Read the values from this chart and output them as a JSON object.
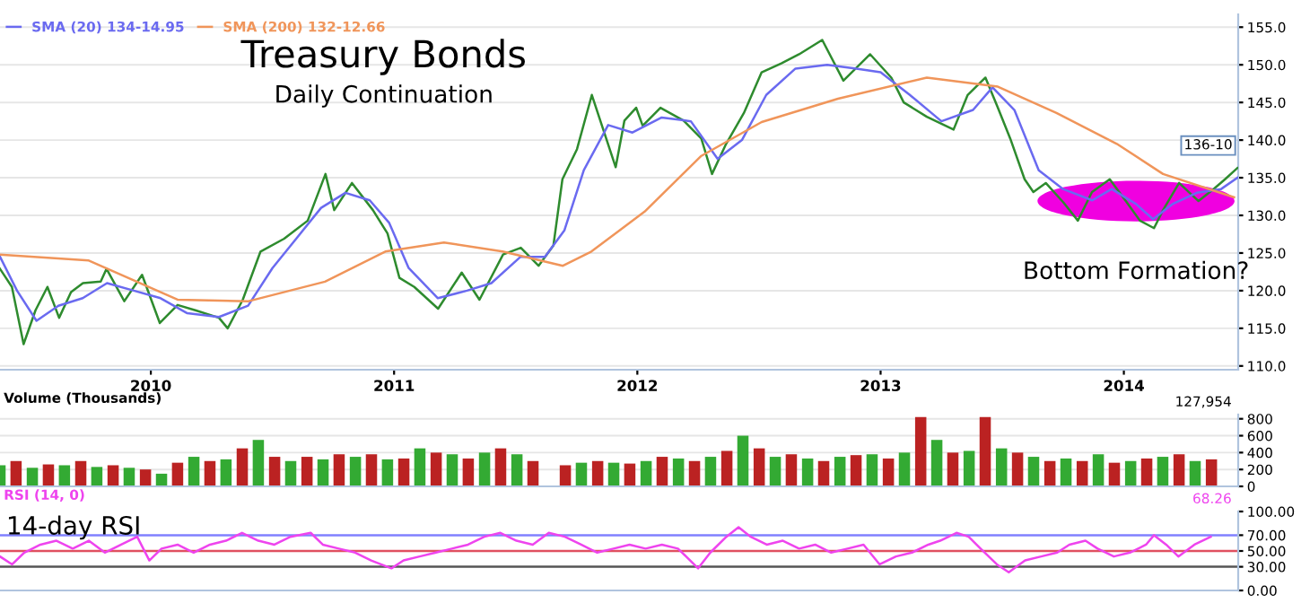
{
  "chart_data": [
    {
      "type": "line",
      "title": "Treasury Bonds",
      "subtitle": "Daily Continuation",
      "legend": "top left",
      "grid": "y",
      "xlim": [
        2009.38,
        2014.47
      ],
      "xticks": [
        2010,
        2011,
        2012,
        2013,
        2014
      ],
      "ylim": [
        109.5,
        156.7
      ],
      "yticks": [
        {
          "value": 110,
          "label": "110.0"
        },
        {
          "value": 115,
          "label": "115.0"
        },
        {
          "value": 120,
          "label": "120.0"
        },
        {
          "value": 125,
          "label": "125.0"
        },
        {
          "value": 130,
          "label": "130.0"
        },
        {
          "value": 135,
          "label": "135.0"
        },
        {
          "value": 140,
          "label": "140.0"
        },
        {
          "value": 145,
          "label": "145.0"
        },
        {
          "value": 150,
          "label": "150.0"
        },
        {
          "value": 155,
          "label": "155.0"
        }
      ],
      "annotations": [
        {
          "text": "Bottom Formation?",
          "x": 2014.05,
          "y": 131.9
        },
        {
          "text": "136-10",
          "x": 2014.467,
          "y": 136.3
        }
      ],
      "series": [
        {
          "color": "#2e8b2e",
          "x": [
            2009.38,
            2009.429,
            2009.477,
            2009.526,
            2009.575,
            2009.623,
            2009.672,
            2009.721,
            2009.794,
            2009.818,
            2009.891,
            2009.964,
            2010.037,
            2010.11,
            2010.183,
            2010.28,
            2010.316,
            2010.378,
            2010.451,
            2010.548,
            2010.645,
            2010.718,
            2010.754,
            2010.827,
            2010.913,
            2010.973,
            2011.022,
            2011.083,
            2011.181,
            2011.278,
            2011.351,
            2011.448,
            2011.521,
            2011.594,
            2011.655,
            2011.692,
            2011.752,
            2011.813,
            2011.862,
            2011.911,
            2011.947,
            2011.995,
            2012.022,
            2012.095,
            2012.19,
            2012.263,
            2012.307,
            2012.365,
            2012.438,
            2012.511,
            2012.592,
            2012.665,
            2012.76,
            2012.847,
            2012.957,
            2013.044,
            2013.095,
            2013.19,
            2013.3,
            2013.358,
            2013.431,
            2013.482,
            2013.533,
            2013.592,
            2013.628,
            2013.679,
            2013.752,
            2013.811,
            2013.869,
            2013.942,
            2014.008,
            2014.066,
            2014.124,
            2014.161,
            2014.227,
            2014.307,
            2014.373,
            2014.416,
            2014.467
          ],
          "values": [
            122.9,
            120.5,
            112.9,
            117.4,
            120.5,
            116.4,
            119.8,
            121.0,
            121.2,
            122.9,
            118.6,
            122.1,
            115.7,
            118.1,
            117.4,
            116.4,
            115.0,
            118.8,
            125.2,
            126.9,
            129.3,
            135.5,
            130.7,
            134.3,
            130.7,
            127.6,
            121.7,
            120.5,
            117.6,
            122.4,
            118.8,
            124.8,
            125.7,
            123.3,
            126.0,
            134.8,
            138.8,
            146.0,
            141.2,
            136.4,
            142.6,
            144.3,
            141.9,
            144.3,
            142.6,
            140.2,
            135.5,
            139.5,
            143.6,
            149.0,
            150.2,
            151.4,
            153.3,
            147.9,
            151.4,
            148.3,
            145.0,
            143.1,
            141.4,
            146.0,
            148.3,
            144.3,
            140.2,
            134.8,
            133.1,
            134.3,
            131.7,
            129.3,
            133.1,
            134.8,
            131.9,
            129.3,
            128.3,
            130.7,
            134.3,
            131.9,
            133.6,
            134.8,
            136.3
          ]
        },
        {
          "name": "SMA (20) 134-14.95",
          "color": "#6a6af0",
          "x": [
            2009.38,
            2009.45,
            2009.53,
            2009.62,
            2009.72,
            2009.82,
            2009.93,
            2010.04,
            2010.15,
            2010.28,
            2010.4,
            2010.5,
            2010.6,
            2010.7,
            2010.8,
            2010.9,
            2010.98,
            2011.06,
            2011.18,
            2011.3,
            2011.4,
            2011.52,
            2011.62,
            2011.7,
            2011.78,
            2011.88,
            2011.98,
            2012.1,
            2012.22,
            2012.33,
            2012.43,
            2012.53,
            2012.65,
            2012.78,
            2012.9,
            2013.0,
            2013.12,
            2013.25,
            2013.38,
            2013.46,
            2013.55,
            2013.65,
            2013.75,
            2013.87,
            2013.95,
            2014.05,
            2014.12,
            2014.2,
            2014.3,
            2014.4,
            2014.467
          ],
          "values": [
            124.5,
            120,
            116,
            118,
            119,
            121,
            120,
            119,
            117,
            116.5,
            118,
            123,
            127,
            131,
            133,
            132,
            129,
            123,
            119,
            120,
            121,
            124.5,
            124.5,
            128,
            136,
            142,
            141,
            143,
            142.5,
            137.5,
            140,
            146,
            149.5,
            150,
            149.5,
            149,
            146,
            142.5,
            144,
            147,
            144,
            136,
            133.5,
            132,
            133.5,
            131.5,
            129.5,
            131.5,
            133,
            133.5,
            135
          ]
        },
        {
          "name": "SMA (200) 132-12.66",
          "color": "#f0955a",
          "x": [
            2009.38,
            2009.745,
            2010.11,
            2010.402,
            2010.716,
            2010.964,
            2011.205,
            2011.446,
            2011.694,
            2011.811,
            2012.03,
            2012.263,
            2012.511,
            2012.825,
            2013.19,
            2013.482,
            2013.723,
            2013.971,
            2014.161,
            2014.453
          ],
          "values": [
            124.8,
            124.0,
            118.8,
            118.6,
            121.2,
            125.2,
            126.4,
            125.2,
            123.3,
            125.2,
            130.5,
            137.9,
            142.4,
            145.5,
            148.3,
            147.1,
            143.6,
            139.5,
            135.5,
            132.4
          ]
        }
      ]
    },
    {
      "type": "bar",
      "title": "Volume (Thousands)",
      "annotations": [
        "127,954"
      ],
      "grid": "y",
      "tick_labels": "y",
      "xlim": [
        2009.38,
        2014.47
      ],
      "ylim": [
        0,
        850
      ],
      "yticks": [
        0,
        200,
        400,
        600,
        800
      ],
      "x": [
        2009.38,
        2009.446,
        2009.513,
        2009.579,
        2009.645,
        2009.712,
        2009.778,
        2009.845,
        2009.911,
        2009.978,
        2010.044,
        2010.11,
        2010.177,
        2010.243,
        2010.309,
        2010.376,
        2010.442,
        2010.509,
        2010.575,
        2010.642,
        2010.708,
        2010.774,
        2010.841,
        2010.907,
        2010.973,
        2011.04,
        2011.106,
        2011.173,
        2011.239,
        2011.305,
        2011.372,
        2011.438,
        2011.505,
        2011.571,
        2011.637,
        2011.704,
        2011.77,
        2011.837,
        2011.903,
        2011.969,
        2012.036,
        2012.102,
        2012.169,
        2012.235,
        2012.301,
        2012.368,
        2012.434,
        2012.501,
        2012.567,
        2012.633,
        2012.7,
        2012.766,
        2012.833,
        2012.899,
        2012.965,
        2013.032,
        2013.098,
        2013.165,
        2013.231,
        2013.297,
        2013.364,
        2013.43,
        2013.497,
        2013.563,
        2013.629,
        2013.696,
        2013.762,
        2013.829,
        2013.895,
        2013.961,
        2014.028,
        2014.094,
        2014.16,
        2014.227,
        2014.293,
        2014.36
      ],
      "values": [
        250,
        300,
        220,
        260,
        250,
        300,
        230,
        250,
        220,
        200,
        150,
        280,
        350,
        300,
        320,
        450,
        550,
        350,
        300,
        350,
        320,
        380,
        350,
        380,
        320,
        330,
        450,
        400,
        380,
        330,
        400,
        450,
        380,
        300,
        0,
        250,
        280,
        300,
        280,
        270,
        300,
        350,
        330,
        300,
        350,
        420,
        600,
        450,
        350,
        380,
        330,
        300,
        350,
        370,
        380,
        330,
        400,
        820,
        550,
        400,
        420,
        820,
        450,
        400,
        350,
        300,
        330,
        300,
        380,
        280,
        300,
        330,
        350,
        380,
        300,
        320
      ],
      "colors": [
        "#33aa33",
        "#bb2222",
        "#33aa33",
        "#bb2222",
        "#33aa33",
        "#bb2222",
        "#33aa33",
        "#bb2222",
        "#33aa33",
        "#bb2222",
        "#33aa33",
        "#bb2222",
        "#33aa33",
        "#bb2222",
        "#33aa33",
        "#bb2222",
        "#33aa33",
        "#bb2222",
        "#33aa33",
        "#bb2222",
        "#33aa33",
        "#bb2222",
        "#33aa33",
        "#bb2222",
        "#33aa33",
        "#bb2222",
        "#33aa33",
        "#bb2222",
        "#33aa33",
        "#bb2222",
        "#33aa33",
        "#bb2222",
        "#33aa33",
        "#bb2222",
        "#33aa33",
        "#bb2222",
        "#33aa33",
        "#bb2222",
        "#33aa33",
        "#bb2222",
        "#33aa33",
        "#bb2222",
        "#33aa33",
        "#bb2222",
        "#33aa33",
        "#bb2222",
        "#33aa33",
        "#bb2222",
        "#33aa33",
        "#bb2222",
        "#33aa33",
        "#bb2222",
        "#33aa33",
        "#bb2222",
        "#33aa33",
        "#bb2222",
        "#33aa33",
        "#bb2222",
        "#33aa33",
        "#bb2222",
        "#33aa33",
        "#bb2222",
        "#33aa33",
        "#bb2222",
        "#33aa33",
        "#bb2222",
        "#33aa33",
        "#bb2222",
        "#33aa33",
        "#bb2222",
        "#33aa33",
        "#bb2222",
        "#33aa33",
        "#bb2222",
        "#33aa33",
        "#bb2222"
      ]
    },
    {
      "type": "line",
      "title": "RSI (14, 0)",
      "annotations": [
        "68.26",
        "14-day RSI"
      ],
      "tick_labels": "y",
      "xlim": [
        2009.38,
        2014.47
      ],
      "ylim": [
        0,
        100
      ],
      "yticks": [
        {
          "value": 0,
          "label": "0.00"
        },
        {
          "value": 30,
          "label": "30.00"
        },
        {
          "value": 50,
          "label": "50.00"
        },
        {
          "value": 70,
          "label": "70.00"
        },
        {
          "value": 100,
          "label": "100.00"
        }
      ],
      "ref_lines": [
        {
          "axis": "y",
          "value": 70,
          "color": "#8080ff"
        },
        {
          "axis": "y",
          "value": 50,
          "color": "#e05060"
        },
        {
          "axis": "y",
          "value": 30,
          "color": "#555555"
        }
      ],
      "series": [
        {
          "color": "#ee44ee",
          "x": [
            2009.38,
            2009.43,
            2009.48,
            2009.546,
            2009.612,
            2009.679,
            2009.745,
            2009.811,
            2009.878,
            2009.944,
            2009.994,
            2010.044,
            2010.11,
            2010.176,
            2010.243,
            2010.309,
            2010.375,
            2010.442,
            2010.508,
            2010.574,
            2010.657,
            2010.707,
            2010.773,
            2010.84,
            2010.906,
            2010.989,
            2011.039,
            2011.105,
            2011.172,
            2011.238,
            2011.304,
            2011.371,
            2011.437,
            2011.503,
            2011.57,
            2011.636,
            2011.702,
            2011.769,
            2011.835,
            2011.902,
            2011.968,
            2012.034,
            2012.101,
            2012.167,
            2012.25,
            2012.3,
            2012.366,
            2012.416,
            2012.466,
            2012.532,
            2012.598,
            2012.665,
            2012.731,
            2012.797,
            2012.864,
            2012.93,
            2012.996,
            2013.063,
            2013.129,
            2013.196,
            2013.245,
            2013.312,
            2013.362,
            2013.411,
            2013.478,
            2013.527,
            2013.594,
            2013.66,
            2013.726,
            2013.776,
            2013.842,
            2013.892,
            2013.959,
            2014.025,
            2014.091,
            2014.124,
            2014.174,
            2014.224,
            2014.29,
            2014.357
          ],
          "values": [
            43,
            33,
            48,
            58,
            63,
            53,
            63,
            48,
            58,
            68,
            38,
            53,
            58,
            48,
            58,
            63,
            73,
            63,
            58,
            68,
            73,
            58,
            53,
            48,
            38,
            28,
            38,
            43,
            48,
            53,
            58,
            68,
            73,
            63,
            58,
            73,
            68,
            58,
            48,
            53,
            58,
            53,
            58,
            53,
            28,
            48,
            68,
            80,
            68,
            58,
            63,
            53,
            58,
            48,
            53,
            58,
            33,
            43,
            48,
            58,
            63,
            73,
            68,
            53,
            33,
            23,
            38,
            43,
            48,
            58,
            63,
            53,
            43,
            48,
            58,
            70,
            58,
            43,
            58,
            68
          ]
        }
      ]
    }
  ]
}
